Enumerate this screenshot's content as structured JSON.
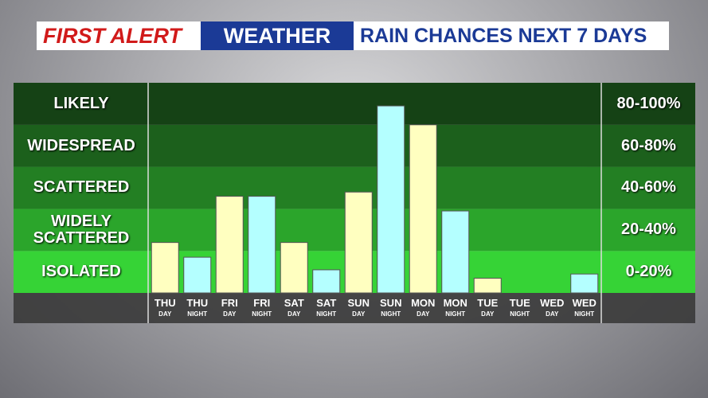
{
  "header": {
    "brand": "FIRST ALERT",
    "section": "WEATHER",
    "title": "RAIN CHANCES NEXT 7 DAYS"
  },
  "chart_data": {
    "type": "bar",
    "categories": [
      "THU",
      "THU",
      "FRI",
      "FRI",
      "SAT",
      "SAT",
      "SUN",
      "SUN",
      "MON",
      "MON",
      "TUE",
      "TUE",
      "WED",
      "WED"
    ],
    "sublabels": [
      "DAY",
      "NIGHT",
      "DAY",
      "NIGHT",
      "DAY",
      "NIGHT",
      "DAY",
      "NIGHT",
      "DAY",
      "NIGHT",
      "DAY",
      "NIGHT",
      "DAY",
      "NIGHT"
    ],
    "values": [
      24,
      17,
      46,
      46,
      24,
      11,
      48,
      89,
      80,
      39,
      7,
      0,
      0,
      9
    ],
    "colors": [
      "#ffffc0",
      "#b4ffff",
      "#ffffc0",
      "#b4ffff",
      "#ffffc0",
      "#b4ffff",
      "#ffffc0",
      "#b4ffff",
      "#ffffc0",
      "#b4ffff",
      "#ffffc0",
      "#b4ffff",
      "#ffffc0",
      "#b4ffff"
    ],
    "ylim": [
      0,
      100
    ],
    "yticks": [
      0,
      20,
      40,
      60,
      80,
      100
    ],
    "bands": [
      {
        "label": "ISOLATED",
        "range": "0-20%",
        "color": "#36d336"
      },
      {
        "label": "WIDELY SCATTERED",
        "range": "20-40%",
        "color": "#2ba52b"
      },
      {
        "label": "SCATTERED",
        "range": "40-60%",
        "color": "#237f23"
      },
      {
        "label": "WIDESPREAD",
        "range": "60-80%",
        "color": "#1c601c"
      },
      {
        "label": "LIKELY",
        "range": "80-100%",
        "color": "#154215"
      }
    ]
  }
}
